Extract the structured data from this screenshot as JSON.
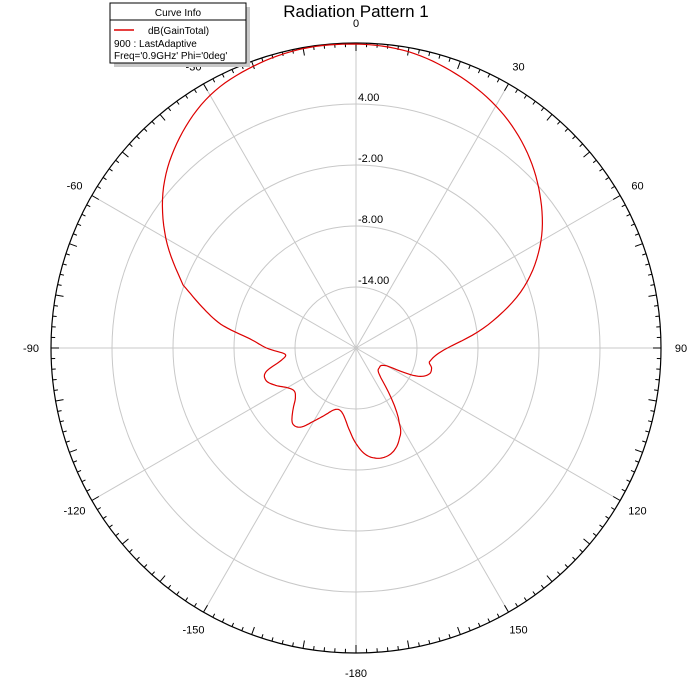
{
  "chart_data": {
    "type": "polar-line",
    "title": "Radiation Pattern 1",
    "angle_unit": "deg",
    "angle_ticks": [
      0,
      30,
      60,
      90,
      120,
      150,
      -180,
      -150,
      -120,
      -90,
      -60,
      -30
    ],
    "angle_tick_labels": [
      "0",
      "30",
      "60",
      "90",
      "120",
      "150",
      "-180",
      "-150",
      "-120",
      "-90",
      "-60",
      "-30"
    ],
    "radial_range": [
      -20,
      10
    ],
    "radial_ticks": [
      -14,
      -8,
      -2,
      4
    ],
    "radial_tick_labels": [
      "-14.00",
      "-8.00",
      "-2.00",
      "4.00"
    ],
    "grid": true,
    "legend": {
      "title": "Curve Info",
      "placement": "top-left",
      "entries": [
        {
          "name": "dB(GainTotal)",
          "color": "#dd0000"
        }
      ],
      "lines": [
        "900 : LastAdaptive",
        "Freq='0.9GHz' Phi='0deg'"
      ]
    },
    "series": [
      {
        "name": "dB(GainTotal)",
        "color": "#dd0000",
        "theta": [
          0,
          10,
          20,
          30,
          40,
          50,
          60,
          70,
          80,
          90,
          100,
          105,
          110,
          115,
          120,
          130,
          140,
          150,
          155,
          160,
          165,
          170,
          175,
          180,
          185,
          190,
          195,
          200,
          205,
          210,
          215,
          220,
          225,
          230,
          235,
          240,
          245,
          250,
          255,
          260,
          265,
          270,
          275,
          280,
          285,
          290,
          300,
          310,
          320,
          330,
          340,
          350,
          360
        ],
        "gain_db": [
          9.9,
          9.6,
          8.7,
          7.5,
          5.8,
          3.6,
          1.0,
          -2.4,
          -6.8,
          -11.0,
          -12.6,
          -12.3,
          -12.4,
          -13.5,
          -16.5,
          -17.0,
          -16.2,
          -11.5,
          -10.0,
          -9.2,
          -8.9,
          -9.0,
          -9.5,
          -10.6,
          -12.0,
          -13.2,
          -13.7,
          -13.5,
          -12.7,
          -11.7,
          -10.5,
          -10.3,
          -11.2,
          -12.2,
          -12.6,
          -12.2,
          -11.3,
          -10.6,
          -10.8,
          -12.4,
          -13.0,
          -11.2,
          -9.5,
          -6.5,
          -4.3,
          -1.9,
          1.6,
          4.7,
          7.0,
          8.7,
          9.5,
          9.9,
          9.9
        ]
      }
    ]
  }
}
